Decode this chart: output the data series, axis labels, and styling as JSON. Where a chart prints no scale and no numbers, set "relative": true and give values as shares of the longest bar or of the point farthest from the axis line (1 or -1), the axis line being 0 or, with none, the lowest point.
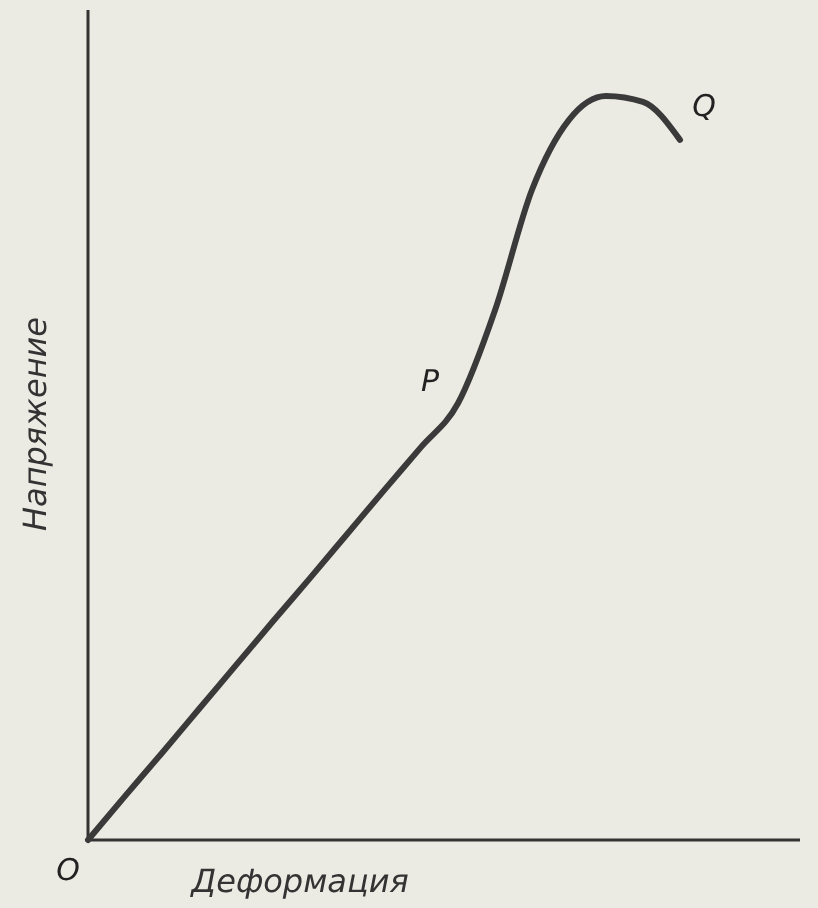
{
  "chart_data": {
    "type": "line",
    "relative": true,
    "xlabel": "Деформация",
    "ylabel": "Напряжение",
    "categories": [
      null,
      null,
      null,
      null,
      null,
      null,
      null,
      null,
      null,
      null,
      null,
      null,
      null,
      null,
      null,
      null,
      null
    ],
    "series": [
      {
        "color": "#3a3a3a",
        "values": [
          0,
          0.059,
          0.117,
          0.176,
          0.235,
          0.294,
          0.352,
          0.411,
          0.47,
          0.528,
          0.587,
          0.712,
          0.874,
          0.968,
          1,
          0.992,
          0.941
        ]
      }
    ],
    "annotations": [
      "O",
      "P",
      "Q"
    ],
    "marker": "none",
    "line_style": "solid"
  }
}
